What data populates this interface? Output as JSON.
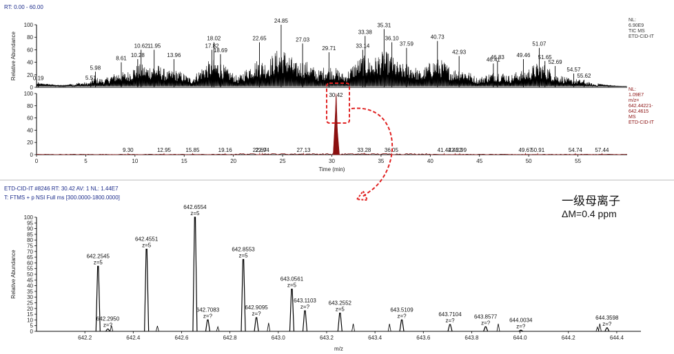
{
  "header": {
    "rt_range": "RT: 0.00 - 60.00",
    "scan_info": "ETD-CID-IT #8246   RT: 30.42   AV: 1   NL: 1.44E7",
    "filter_info": "T: FTMS + p NSI Full ms [300.0000-1800.0000]"
  },
  "annotations": {
    "title_cn": "一级母离子",
    "delta_m": "ΔM=0.4 ppm"
  },
  "colors": {
    "tic": "#000000",
    "xic": "#8b1010",
    "arrow": "#e02020",
    "header": "#1a2a8a",
    "smooth": "#2e8b2e"
  },
  "chart_data": [
    {
      "type": "line",
      "id": "tic",
      "ylabel": "Relative Abundance",
      "xlim": [
        0,
        60
      ],
      "ylim": [
        0,
        100
      ],
      "xticks": [
        0,
        5,
        10,
        15,
        20,
        25,
        30,
        35,
        40,
        45,
        50,
        55
      ],
      "yticks": [
        0,
        20,
        40,
        60,
        80,
        100
      ],
      "side_label": [
        "NL:",
        "6.90E9",
        "TIC MS",
        "ETD-CID-IT"
      ],
      "peaks": [
        {
          "x": 0.19,
          "y": 8
        },
        {
          "x": 5.51,
          "y": 9
        },
        {
          "x": 5.98,
          "y": 25
        },
        {
          "x": 8.61,
          "y": 40
        },
        {
          "x": 10.28,
          "y": 45
        },
        {
          "x": 10.62,
          "y": 60
        },
        {
          "x": 11.95,
          "y": 60
        },
        {
          "x": 13.96,
          "y": 45
        },
        {
          "x": 17.82,
          "y": 60
        },
        {
          "x": 18.02,
          "y": 72
        },
        {
          "x": 18.69,
          "y": 53
        },
        {
          "x": 22.65,
          "y": 72
        },
        {
          "x": 24.85,
          "y": 100
        },
        {
          "x": 27.03,
          "y": 70
        },
        {
          "x": 29.71,
          "y": 56
        },
        {
          "x": 33.14,
          "y": 60
        },
        {
          "x": 33.38,
          "y": 82
        },
        {
          "x": 35.31,
          "y": 93
        },
        {
          "x": 36.1,
          "y": 72
        },
        {
          "x": 37.59,
          "y": 63
        },
        {
          "x": 40.73,
          "y": 74
        },
        {
          "x": 42.93,
          "y": 50
        },
        {
          "x": 46.41,
          "y": 38
        },
        {
          "x": 46.83,
          "y": 42
        },
        {
          "x": 49.46,
          "y": 45
        },
        {
          "x": 51.07,
          "y": 63
        },
        {
          "x": 51.65,
          "y": 42
        },
        {
          "x": 52.69,
          "y": 34
        },
        {
          "x": 54.57,
          "y": 22
        },
        {
          "x": 55.62,
          "y": 12
        }
      ],
      "labels": [
        "0.19",
        "5.51",
        "5.98",
        "8.61",
        "10.28",
        "10.62",
        "11.95",
        "13.96",
        "17.82",
        "18.02",
        "18.69",
        "22.65",
        "24.85",
        "27.03",
        "29.71",
        "33.14",
        "33.38",
        "35.31",
        "36.10",
        "37.59",
        "40.73",
        "42.93",
        "46.41",
        "46.83",
        "49.46",
        "51.07",
        "51.65",
        "52.69",
        "54.57",
        "55.62"
      ]
    },
    {
      "type": "line",
      "id": "xic",
      "xlabel": "Time (min)",
      "xlim": [
        0,
        60
      ],
      "ylim": [
        0,
        100
      ],
      "xticks": [
        0,
        5,
        10,
        15,
        20,
        25,
        30,
        35,
        40,
        45,
        50,
        55
      ],
      "yticks": [
        0,
        20,
        40,
        60,
        80,
        100
      ],
      "side_label": [
        "NL:",
        "1.09E7",
        "m/z=",
        "642.44221-",
        "642.4615",
        "MS",
        "ETD-CID-IT"
      ],
      "peaks": [
        {
          "x": 9.3,
          "y": 0.5
        },
        {
          "x": 12.95,
          "y": 0.5
        },
        {
          "x": 15.85,
          "y": 0.5
        },
        {
          "x": 19.16,
          "y": 0.5
        },
        {
          "x": 22.67,
          "y": 1
        },
        {
          "x": 22.94,
          "y": 1
        },
        {
          "x": 27.13,
          "y": 1
        },
        {
          "x": 30.42,
          "y": 100
        },
        {
          "x": 33.28,
          "y": 1
        },
        {
          "x": 36.05,
          "y": 1
        },
        {
          "x": 41.42,
          "y": 0.5
        },
        {
          "x": 42.52,
          "y": 0.5
        },
        {
          "x": 42.99,
          "y": 0.5
        },
        {
          "x": 49.67,
          "y": 0.5
        },
        {
          "x": 50.91,
          "y": 0.5
        },
        {
          "x": 54.74,
          "y": 0.5
        },
        {
          "x": 57.44,
          "y": 0.5
        }
      ],
      "labels": [
        "9.30",
        "12.95",
        "15.85",
        "19.16",
        "22.67",
        "22.94",
        "27.13",
        "30.42",
        "33.28",
        "36.05",
        "41.42",
        "42.52",
        "42.99",
        "49.67",
        "50.91",
        "54.74",
        "57.44"
      ]
    },
    {
      "type": "bar",
      "id": "ms",
      "ylabel": "Relative Abundance",
      "xlabel": "m/z",
      "xlim": [
        642.0,
        644.5
      ],
      "ylim": [
        0,
        100
      ],
      "xticks": [
        642.2,
        642.4,
        642.6,
        642.8,
        643.0,
        643.2,
        643.4,
        643.6,
        643.8,
        644.0,
        644.2,
        644.4
      ],
      "yticks": [
        0,
        5,
        10,
        15,
        20,
        25,
        30,
        35,
        40,
        45,
        50,
        55,
        60,
        65,
        70,
        75,
        80,
        85,
        90,
        95,
        100
      ],
      "peaks": [
        {
          "mz": 642.2545,
          "y": 57,
          "label": "642.2545",
          "z": "z=5"
        },
        {
          "mz": 642.295,
          "y": 2,
          "label": "642.2950",
          "z": "z=?"
        },
        {
          "mz": 642.4551,
          "y": 72,
          "label": "642.4551",
          "z": "z=5"
        },
        {
          "mz": 642.6554,
          "y": 100,
          "label": "642.6554",
          "z": "z=5"
        },
        {
          "mz": 642.7083,
          "y": 10,
          "label": "642.7083",
          "z": "z=?"
        },
        {
          "mz": 642.8553,
          "y": 63,
          "label": "642.8553",
          "z": "z=5"
        },
        {
          "mz": 642.9095,
          "y": 12,
          "label": "642.9095",
          "z": "z=?"
        },
        {
          "mz": 643.0561,
          "y": 37,
          "label": "643.0561",
          "z": "z=5"
        },
        {
          "mz": 643.1103,
          "y": 18,
          "label": "643.1103",
          "z": "z=?"
        },
        {
          "mz": 643.2552,
          "y": 16,
          "label": "643.2552",
          "z": "z=5"
        },
        {
          "mz": 643.5109,
          "y": 10,
          "label": "643.5109",
          "z": "z=?"
        },
        {
          "mz": 643.7104,
          "y": 6,
          "label": "643.7104",
          "z": "z=?"
        },
        {
          "mz": 643.8577,
          "y": 4,
          "label": "643.8577",
          "z": "z=?"
        },
        {
          "mz": 644.0034,
          "y": 1,
          "label": "644.0034",
          "z": "z=?"
        },
        {
          "mz": 644.3598,
          "y": 3,
          "label": "644.3598",
          "z": "z=?"
        }
      ]
    }
  ]
}
